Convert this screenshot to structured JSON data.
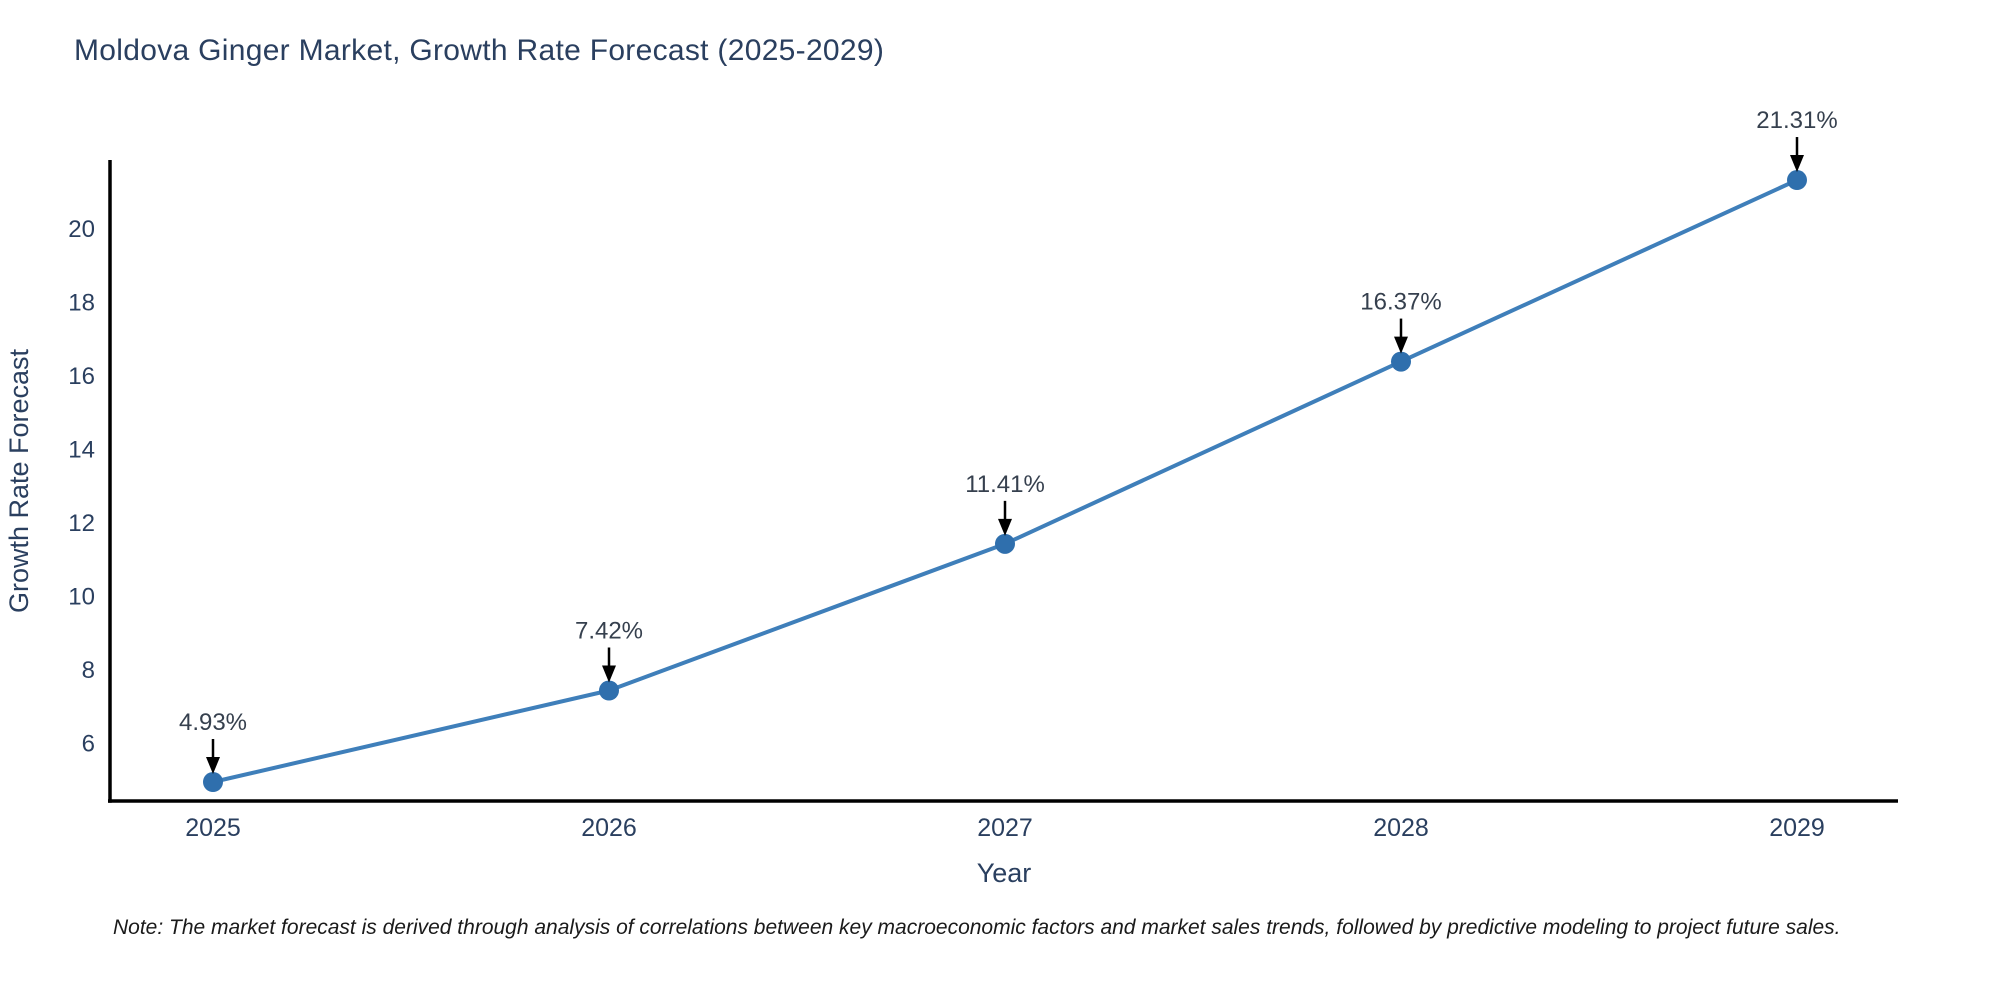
{
  "title": "Moldova Ginger Market, Growth Rate Forecast (2025-2029)",
  "note": "Note: The market forecast is derived through analysis of correlations between key macroeconomic factors and market sales trends, followed by predictive modeling to project future sales.",
  "colors": {
    "title": "#2a3f5f",
    "axis_line": "#000000",
    "series_line": "#3f7fba",
    "marker": "#2f6fad",
    "tick_label": "#2a3f5f",
    "axis_title": "#2a3f5f",
    "annotation_text": "#36404e",
    "annotation_arrow": "#000000",
    "note_text": "#1a1a1a",
    "background": "#ffffff"
  },
  "chart_data": {
    "type": "line",
    "title": "Moldova Ginger Market, Growth Rate Forecast (2025-2029)",
    "xlabel": "Year",
    "ylabel": "Growth Rate Forecast",
    "x": [
      2025,
      2026,
      2027,
      2028,
      2029
    ],
    "values": [
      4.93,
      7.42,
      11.41,
      16.37,
      21.31
    ],
    "point_labels": [
      "4.93%",
      "7.42%",
      "11.41%",
      "16.37%",
      "21.31%"
    ],
    "x_tick_labels": [
      "2025",
      "2026",
      "2027",
      "2028",
      "2029"
    ],
    "y_ticks": [
      6,
      8,
      10,
      12,
      14,
      16,
      18,
      20
    ],
    "ylim": [
      4.4,
      21.9
    ],
    "xlim": [
      2024.74,
      2029.26
    ],
    "grid": false,
    "legend_position": "none",
    "annotations_have_arrows": true,
    "line_shape": "linear"
  }
}
